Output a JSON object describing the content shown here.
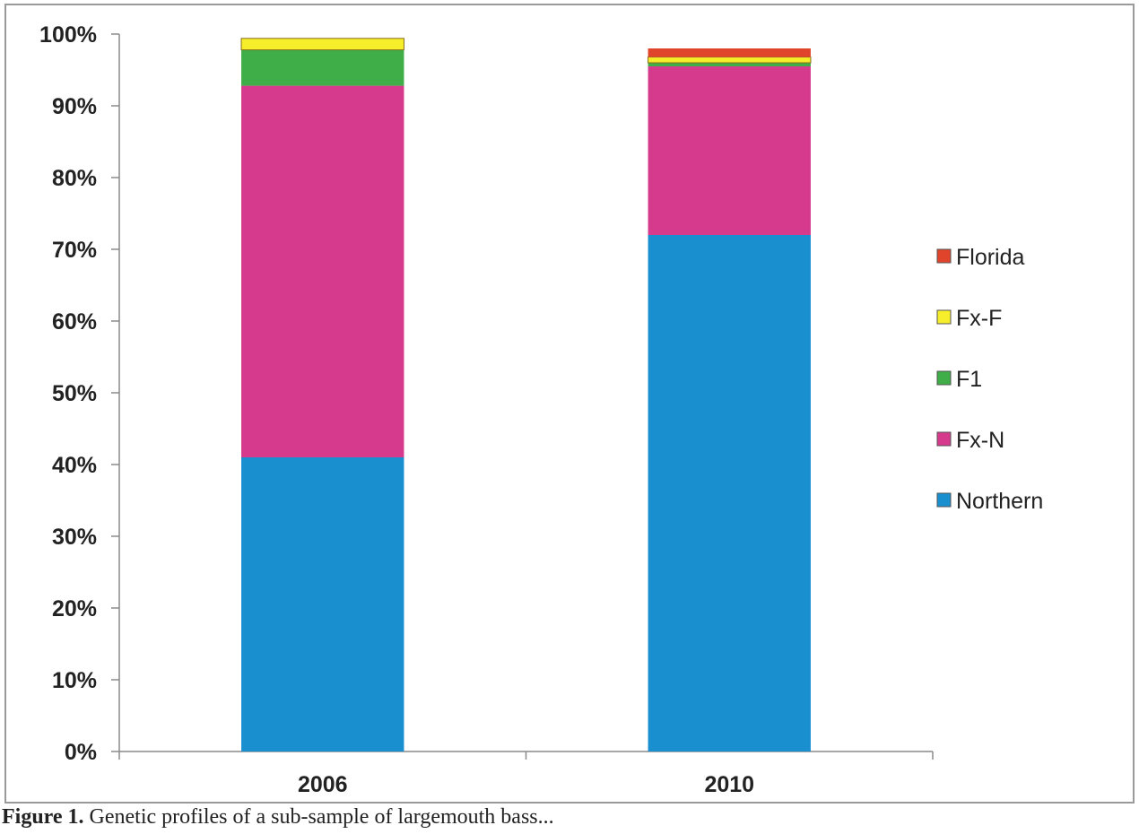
{
  "chart_data": {
    "type": "bar",
    "stacked": true,
    "categories": [
      "2006",
      "2010"
    ],
    "series": [
      {
        "name": "Northern",
        "color": "#1a8fd0",
        "values": [
          41,
          72
        ]
      },
      {
        "name": "Fx-N",
        "color": "#d63a8c",
        "values": [
          51.8,
          23.5
        ]
      },
      {
        "name": "F1",
        "color": "#3fae49",
        "values": [
          5,
          0.5
        ]
      },
      {
        "name": "Fx-F",
        "color": "#f6ee2b",
        "values": [
          1.6,
          0.8
        ]
      },
      {
        "name": "Florida",
        "color": "#e0452c",
        "values": [
          0,
          1.2
        ]
      }
    ],
    "ylim": [
      0,
      100
    ],
    "y_ticks": [
      "0%",
      "10%",
      "20%",
      "30%",
      "40%",
      "50%",
      "60%",
      "70%",
      "80%",
      "90%",
      "100%"
    ],
    "legend_position": "right",
    "grid": false
  },
  "caption": {
    "label": "Figure 1.",
    "text": "Genetic profiles of a sub-sample of largemouth bass..."
  }
}
